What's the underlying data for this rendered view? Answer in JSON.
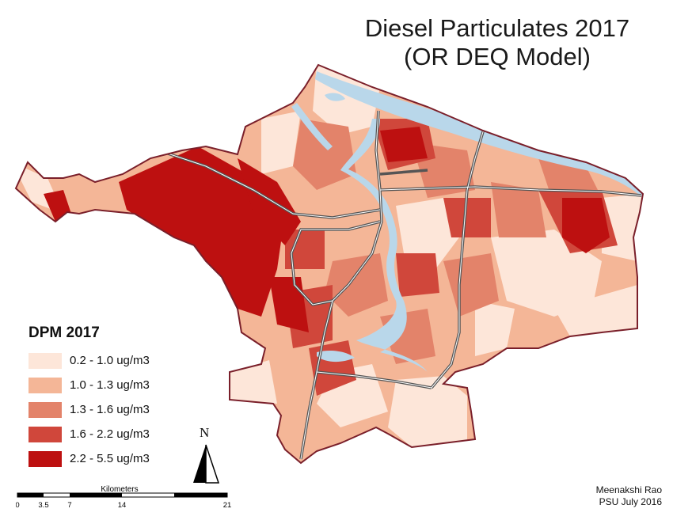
{
  "title": {
    "line1": "Diesel Particulates 2017",
    "line2": "(OR DEQ Model)"
  },
  "legend": {
    "title": "DPM 2017",
    "classes": [
      {
        "label": "0.2 - 1.0 ug/m3",
        "color": "#fde6d9"
      },
      {
        "label": "1.0 - 1.3 ug/m3",
        "color": "#f4b697"
      },
      {
        "label": "1.3 - 1.6 ug/m3",
        "color": "#e3836a"
      },
      {
        "label": "1.6 - 2.2 ug/m3",
        "color": "#d0473b"
      },
      {
        "label": "2.2 - 5.5 ug/m3",
        "color": "#bd1010"
      }
    ]
  },
  "north_arrow": {
    "letter": "N"
  },
  "scale_bar": {
    "units": "Kilometers",
    "ticks": [
      "0",
      "3.5",
      "7",
      "14",
      "21"
    ]
  },
  "credit": {
    "author": "Meenakshi Rao",
    "org_date": "PSU July 2016"
  },
  "colors": {
    "boundary": "#7a1f2a",
    "water": "#b9d7ea",
    "highway": "#555555"
  }
}
